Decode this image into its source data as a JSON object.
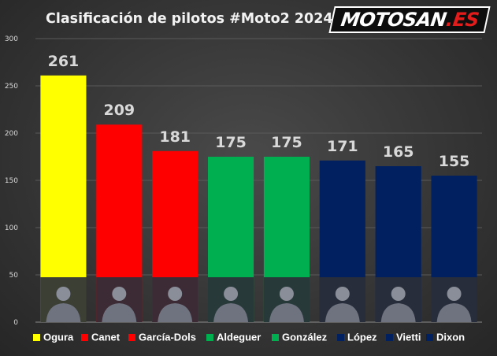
{
  "title": "Clasificación de pilotos #Moto2 2024",
  "logo": {
    "main": "MOTOSAN",
    "accent": ".ES"
  },
  "chart_data": {
    "type": "bar",
    "title": "Clasificación de pilotos #Moto2 2024",
    "categories": [
      "Ogura",
      "Canet",
      "García-Dols",
      "Aldeguer",
      "González",
      "López",
      "Vietti",
      "Dixon"
    ],
    "values": [
      261,
      209,
      181,
      175,
      175,
      171,
      165,
      155
    ],
    "colors": [
      "#ffff00",
      "#ff0000",
      "#ff0000",
      "#00b050",
      "#00b050",
      "#002060",
      "#002060",
      "#002060"
    ],
    "ylim": [
      0,
      300
    ],
    "yticks": [
      0,
      50,
      100,
      150,
      200,
      250,
      300
    ],
    "grid": true,
    "legend": "bottom",
    "xlabel": "",
    "ylabel": ""
  }
}
